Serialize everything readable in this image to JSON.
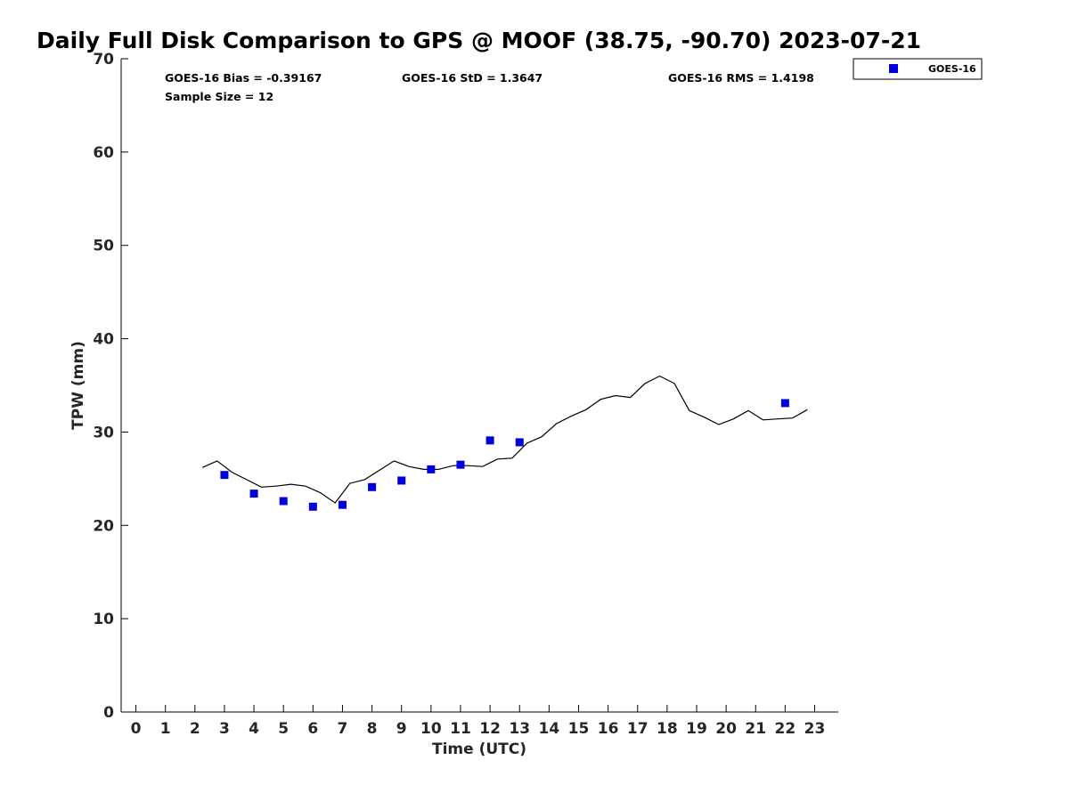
{
  "chart_data": {
    "type": "scatter",
    "title": "Daily Full Disk Comparison to GPS @ MOOF (38.75, -90.70) 2023-07-21",
    "xlabel": "Time (UTC)",
    "ylabel": "TPW (mm)",
    "xlim": [
      -0.5,
      23.8
    ],
    "ylim": [
      0,
      70
    ],
    "x_ticks": [
      0,
      1,
      2,
      3,
      4,
      5,
      6,
      7,
      8,
      9,
      10,
      11,
      12,
      13,
      14,
      15,
      16,
      17,
      18,
      19,
      20,
      21,
      22,
      23
    ],
    "y_ticks": [
      0,
      10,
      20,
      30,
      40,
      50,
      60,
      70
    ],
    "grid": false,
    "legend_position": "top-right",
    "stats": {
      "bias": "GOES-16 Bias = -0.39167",
      "std": "GOES-16 StD = 1.3647",
      "rms": "GOES-16 RMS = 1.4198",
      "sample": "Sample Size = 12"
    },
    "series": [
      {
        "name": "GOES-16",
        "kind": "scatter",
        "color": "#0000dd",
        "x": [
          3,
          4,
          5,
          6,
          7,
          8,
          9,
          10,
          11,
          12,
          13,
          22
        ],
        "y": [
          25.4,
          23.4,
          22.6,
          22.0,
          22.2,
          24.1,
          24.8,
          26.0,
          26.5,
          29.1,
          28.9,
          33.1
        ]
      },
      {
        "kind": "line",
        "color": "#000000",
        "x": [
          2.25,
          2.75,
          3.25,
          3.75,
          4.25,
          4.75,
          5.25,
          5.75,
          6.25,
          6.75,
          7.25,
          7.75,
          8.25,
          8.75,
          9.25,
          9.75,
          10.25,
          10.75,
          11.25,
          11.75,
          12.25,
          12.75,
          13.25,
          13.75,
          14.25,
          14.75,
          15.25,
          15.75,
          16.25,
          16.75,
          17.25,
          17.75,
          18.25,
          18.75,
          19.25,
          19.75,
          20.25,
          20.75,
          21.25,
          21.75,
          22.25,
          22.75
        ],
        "y": [
          26.2,
          26.9,
          25.7,
          24.9,
          24.1,
          24.2,
          24.4,
          24.2,
          23.5,
          22.4,
          24.5,
          24.9,
          25.9,
          26.9,
          26.3,
          26.0,
          26.0,
          26.4,
          26.4,
          26.3,
          27.1,
          27.2,
          28.8,
          29.5,
          30.9,
          31.7,
          32.4,
          33.5,
          33.9,
          33.7,
          35.2,
          36.0,
          35.2,
          32.3,
          31.6,
          30.8,
          31.4,
          32.3,
          31.3,
          31.4,
          31.5,
          32.4
        ]
      }
    ]
  }
}
